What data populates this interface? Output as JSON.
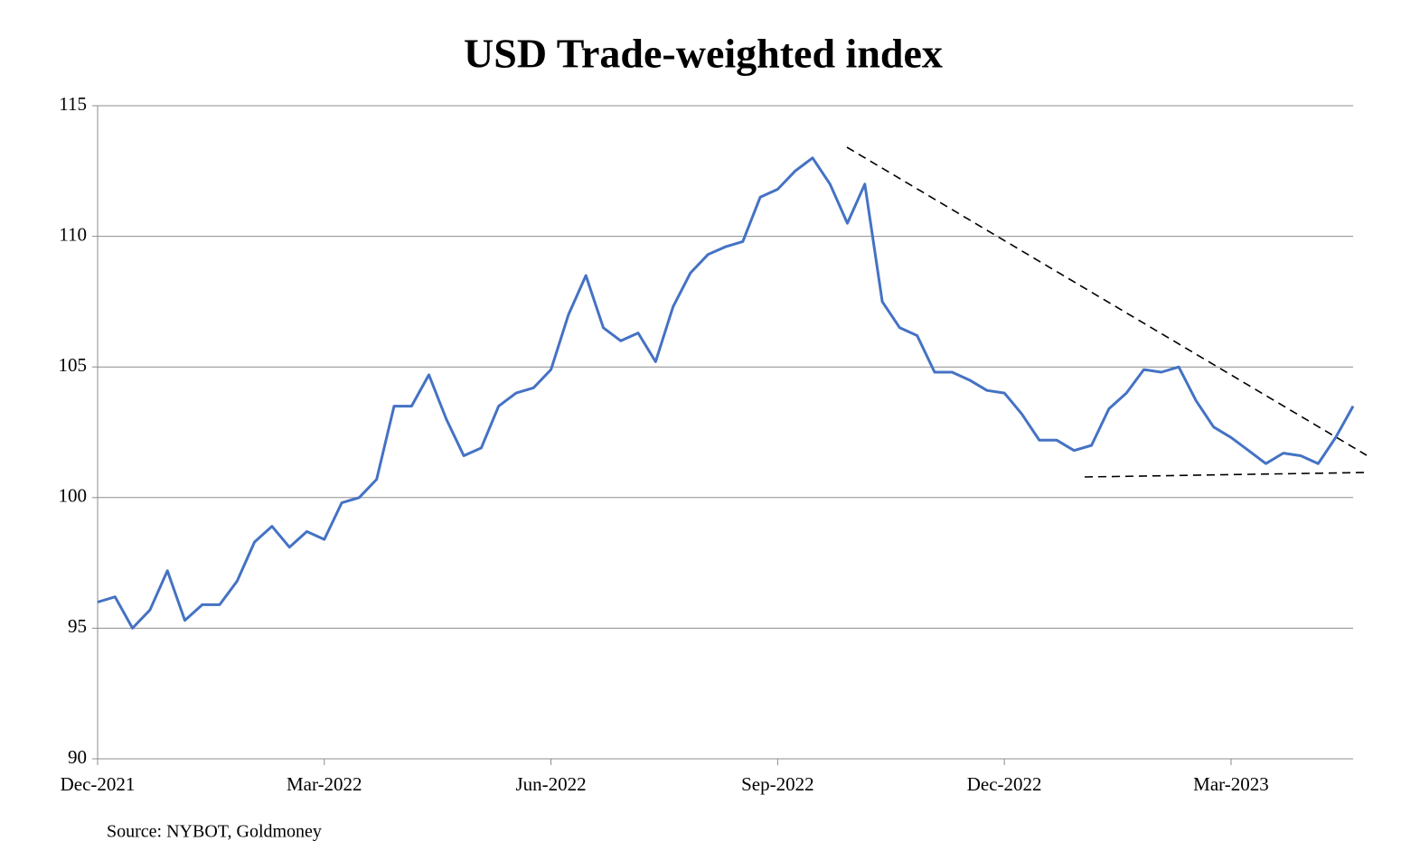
{
  "chart_data": {
    "type": "line",
    "title": "USD Trade-weighted index",
    "source": "Source: NYBOT, Goldmoney",
    "categories": [
      "Dec-2021",
      null,
      null,
      null,
      null,
      null,
      null,
      null,
      null,
      null,
      null,
      null,
      null,
      "Mar-2022",
      null,
      null,
      null,
      null,
      null,
      null,
      null,
      null,
      null,
      null,
      null,
      null,
      "Jun-2022",
      null,
      null,
      null,
      null,
      null,
      null,
      null,
      null,
      null,
      null,
      null,
      null,
      "Sep-2022",
      null,
      null,
      null,
      null,
      null,
      null,
      null,
      null,
      null,
      null,
      null,
      null,
      "Dec-2022",
      null,
      null,
      null,
      null,
      null,
      null,
      null,
      null,
      null,
      null,
      null,
      null,
      "Mar-2023",
      null,
      null,
      null,
      null,
      null,
      null,
      null
    ],
    "series": [
      {
        "color": "#4472c4",
        "values": [
          96.0,
          96.2,
          95.0,
          95.7,
          97.2,
          95.3,
          95.9,
          95.9,
          96.8,
          98.3,
          98.9,
          98.1,
          98.7,
          98.4,
          99.8,
          100.0,
          100.7,
          103.5,
          103.5,
          104.7,
          103.0,
          101.6,
          101.9,
          103.5,
          104.0,
          104.2,
          104.9,
          107.0,
          108.5,
          106.5,
          106.0,
          106.3,
          105.2,
          107.3,
          108.6,
          109.3,
          109.6,
          109.8,
          111.5,
          111.8,
          112.5,
          113.0,
          112.0,
          110.5,
          112.0,
          107.5,
          106.5,
          106.2,
          104.8,
          104.8,
          104.5,
          104.1,
          104.0,
          103.2,
          102.2,
          102.2,
          101.8,
          102.0,
          103.4,
          104.0,
          104.9,
          104.8,
          105.0,
          103.7,
          102.7,
          102.3,
          101.8,
          101.3,
          101.7,
          101.6,
          101.3,
          102.3,
          103.5
        ]
      }
    ],
    "ylim": [
      90,
      115
    ],
    "yticks": [
      90,
      95,
      100,
      105,
      110,
      115
    ],
    "grid": true
  }
}
